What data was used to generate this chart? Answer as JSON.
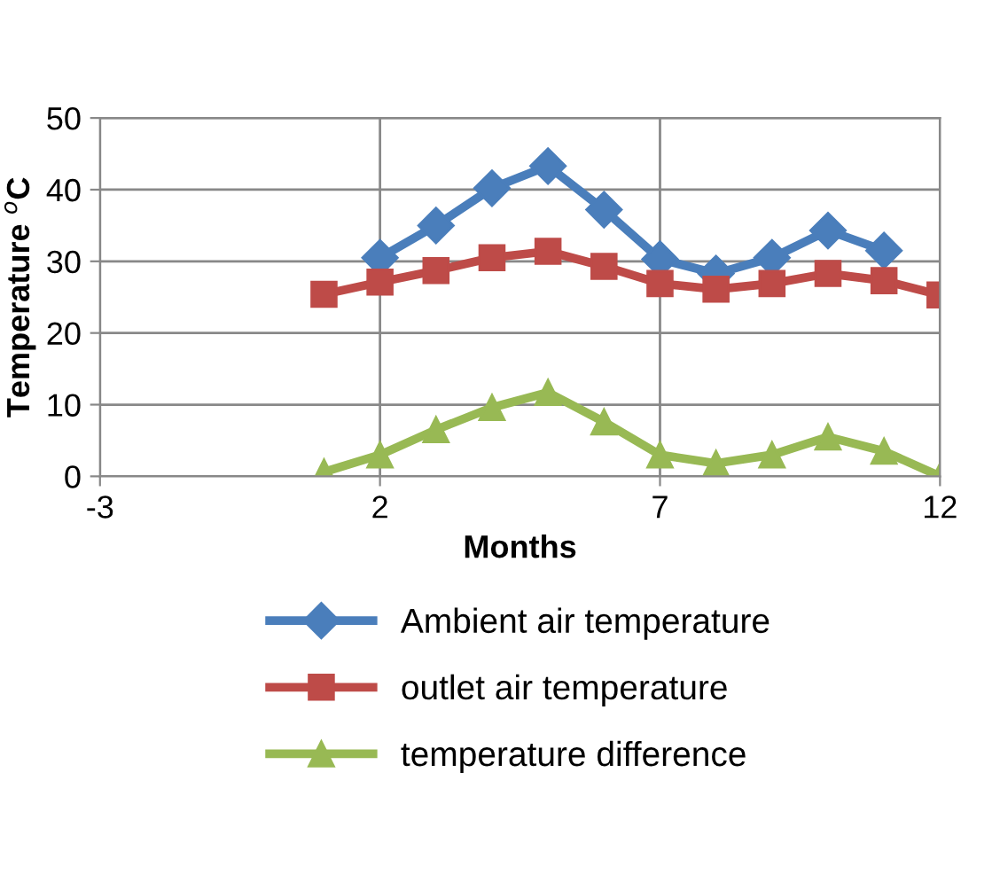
{
  "chart_data": {
    "type": "line",
    "xlabel": "Months",
    "ylabel": "Temperature $^{o}$C",
    "x": [
      1,
      2,
      3,
      4,
      5,
      6,
      7,
      8,
      9,
      10,
      11,
      12
    ],
    "series": [
      {
        "name": "Ambient air temperature",
        "color": "#4a7ebb",
        "marker": "diamond",
        "values": [
          null,
          30.5,
          35,
          40.2,
          43.3,
          37.2,
          30.3,
          28.3,
          30.5,
          34.3,
          31.5,
          null
        ]
      },
      {
        "name": "outlet air temperature",
        "color": "#be4b48",
        "marker": "square",
        "values": [
          25.4,
          27.1,
          28.7,
          30.5,
          31.4,
          29.3,
          26.9,
          26.1,
          26.9,
          28.3,
          27.3,
          25.3
        ]
      },
      {
        "name": "temperature difference",
        "color": "#98b954",
        "marker": "triangle",
        "values": [
          0.6,
          3,
          6.5,
          9.6,
          11.7,
          7.6,
          3,
          1.8,
          3,
          5.5,
          3.5,
          0
        ]
      }
    ],
    "xlim": [
      -3,
      12
    ],
    "xticks": [
      -3,
      2,
      7,
      12
    ],
    "ylim": [
      0,
      50
    ],
    "yticks": [
      0,
      10,
      20,
      30,
      40,
      50
    ],
    "grid": true,
    "legend": "bottom"
  }
}
